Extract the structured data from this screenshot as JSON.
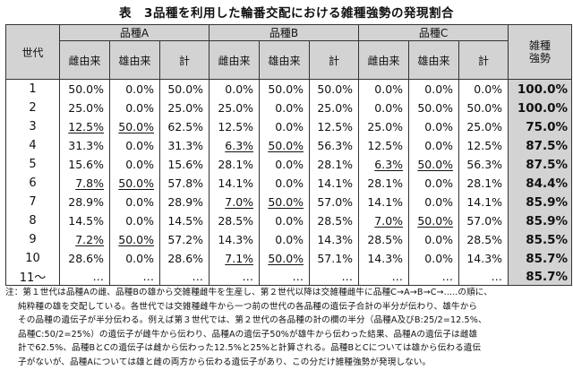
{
  "title": "表　3品種を利用した輪番交配における雑種強勢の発現割合",
  "header": {
    "generation": "世代",
    "groups": [
      "品種A",
      "品種B",
      "品種C"
    ],
    "sub": [
      "雌由来",
      "雄由来",
      "計"
    ],
    "ratio": "雑種強勢"
  },
  "rows": [
    {
      "gen": "1",
      "cells": [
        "50.0%",
        "0.0%",
        "50.0%",
        "0.0%",
        "50.0%",
        "50.0%",
        "0.0%",
        "0.0%",
        "0.0%"
      ],
      "ratio": "100.0%",
      "ul": []
    },
    {
      "gen": "2",
      "cells": [
        "25.0%",
        "0.0%",
        "25.0%",
        "25.0%",
        "0.0%",
        "25.0%",
        "0.0%",
        "50.0%",
        "50.0%"
      ],
      "ratio": "100.0%",
      "ul": []
    },
    {
      "gen": "3",
      "cells": [
        "12.5%",
        "50.0%",
        "62.5%",
        "12.5%",
        "0.0%",
        "12.5%",
        "25.0%",
        "0.0%",
        "25.0%"
      ],
      "ratio": "75.0%",
      "ul": [
        0,
        1
      ]
    },
    {
      "gen": "4",
      "cells": [
        "31.3%",
        "0.0%",
        "31.3%",
        "6.3%",
        "50.0%",
        "56.3%",
        "12.5%",
        "0.0%",
        "12.5%"
      ],
      "ratio": "87.5%",
      "ul": [
        3,
        4
      ]
    },
    {
      "gen": "5",
      "cells": [
        "15.6%",
        "0.0%",
        "15.6%",
        "28.1%",
        "0.0%",
        "28.1%",
        "6.3%",
        "50.0%",
        "56.3%"
      ],
      "ratio": "87.5%",
      "ul": [
        6,
        7
      ]
    },
    {
      "gen": "6",
      "cells": [
        "7.8%",
        "50.0%",
        "57.8%",
        "14.1%",
        "0.0%",
        "14.1%",
        "28.1%",
        "0.0%",
        "28.1%"
      ],
      "ratio": "84.4%",
      "ul": [
        0,
        1
      ]
    },
    {
      "gen": "7",
      "cells": [
        "28.9%",
        "0.0%",
        "28.9%",
        "7.0%",
        "50.0%",
        "57.0%",
        "14.1%",
        "0.0%",
        "14.1%"
      ],
      "ratio": "85.9%",
      "ul": [
        3,
        4
      ]
    },
    {
      "gen": "8",
      "cells": [
        "14.5%",
        "0.0%",
        "14.5%",
        "28.5%",
        "0.0%",
        "28.5%",
        "7.0%",
        "50.0%",
        "57.0%"
      ],
      "ratio": "85.9%",
      "ul": [
        6,
        7
      ]
    },
    {
      "gen": "9",
      "cells": [
        "7.2%",
        "50.0%",
        "57.2%",
        "14.3%",
        "0.0%",
        "14.3%",
        "28.5%",
        "0.0%",
        "28.5%"
      ],
      "ratio": "85.5%",
      "ul": [
        0,
        1
      ]
    },
    {
      "gen": "10",
      "cells": [
        "28.6%",
        "0.0%",
        "28.6%",
        "7.1%",
        "50.0%",
        "57.1%",
        "14.3%",
        "0.0%",
        "14.3%"
      ],
      "ratio": "85.7%",
      "ul": [
        3,
        4
      ]
    },
    {
      "gen": "11～",
      "cells": [
        "…",
        "…",
        "…",
        "…",
        "…",
        "…",
        "…",
        "…",
        "…"
      ],
      "ratio": "85.7%",
      "ul": []
    }
  ],
  "note": {
    "lines": [
      "注：第１世代は品種Aの雌、品種Bの雄から交雑種雌牛を生産し、第２世代以降は交雑種雌牛に品種C→A→B→C→.....の順に、",
      "純粋種の雄を交配している。各世代では交雑種雌牛から一つ前の世代の各品種の遺伝子合計の半分が伝わり、雄牛から",
      "その品種の遺伝子が半分伝わる。例えば第３世代では、第２世代の各品種の計の欄の半分（品種A及びB:25/2=12.5%、",
      "品種C:50/2=25%）の遺伝子が雌牛から伝わり、品種Aの遺伝子50%が雄牛から伝わった結果、品種Aの遺伝子は雌雄",
      "計で62.5%、品種BとCの遺伝子は雌から伝わった12.5%と25%と計算される。品種BとCについては雄から伝わる遺伝",
      "子がないが、品種Aについては雄と雌の両方から伝わる遺伝子があり、この分だけ雑種強勢が発現しない。"
    ]
  }
}
